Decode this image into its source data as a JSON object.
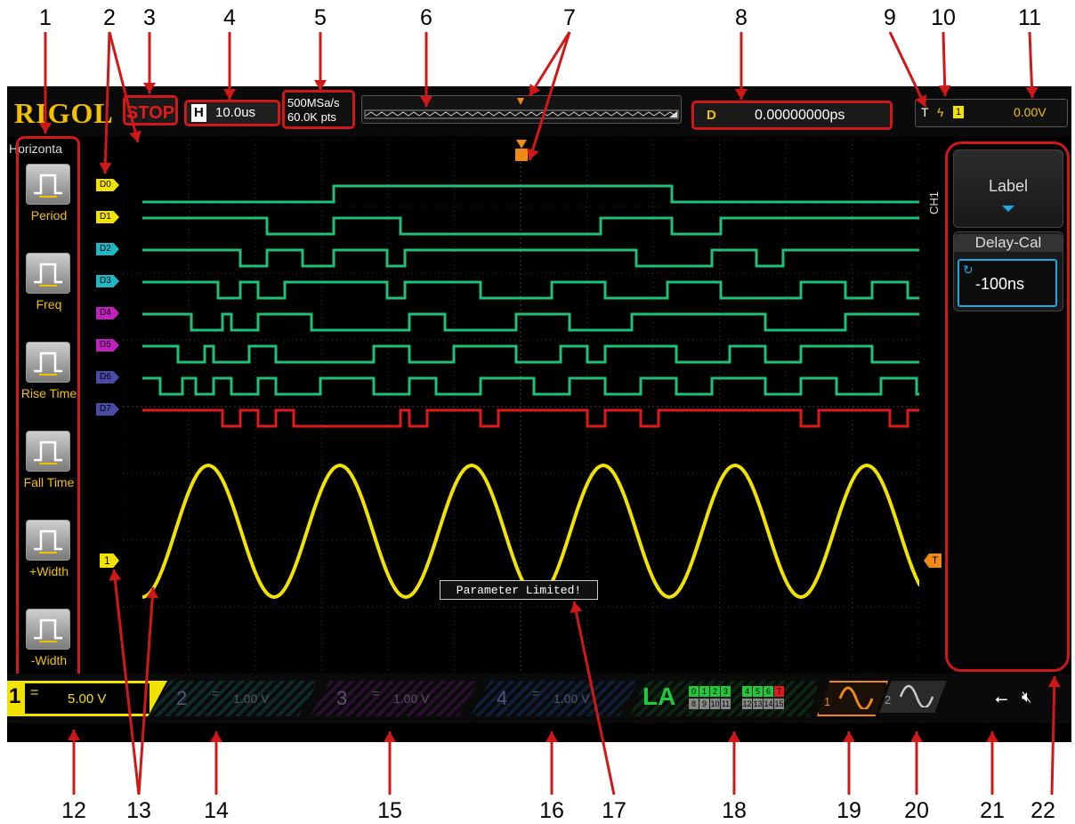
{
  "callouts": [
    "1",
    "2",
    "3",
    "4",
    "5",
    "6",
    "7",
    "8",
    "9",
    "10",
    "11",
    "12",
    "13",
    "14",
    "15",
    "16",
    "17",
    "18",
    "19",
    "20",
    "21",
    "22"
  ],
  "brand": "RIGOL",
  "run_state": "STOP",
  "horizontal": {
    "key": "H",
    "value": "10.0us"
  },
  "sample": {
    "rate": "500MSa/s",
    "depth": "60.0K pts"
  },
  "delay": {
    "key": "D",
    "value": "0.00000000ps"
  },
  "trigger": {
    "key": "T",
    "source": "1",
    "level": "0.00V"
  },
  "left_menu": {
    "title": "Horizonta",
    "items": [
      {
        "label": "Period",
        "icon": "period-icon"
      },
      {
        "label": "Freq",
        "icon": "frequency-icon"
      },
      {
        "label": "Rise Time",
        "icon": "rise-time-icon"
      },
      {
        "label": "Fall Time",
        "icon": "fall-time-icon"
      },
      {
        "label": "+Width",
        "icon": "positive-width-icon"
      },
      {
        "label": "-Width",
        "icon": "negative-width-icon"
      }
    ]
  },
  "digital_channels": [
    "D0",
    "D1",
    "D2",
    "D3",
    "D4",
    "D5",
    "D6",
    "D7"
  ],
  "ch1_marker": "1",
  "trigger_marker_right": "T",
  "tooltip": "Parameter Limited!",
  "right_panel": {
    "tab": "CH1",
    "label_btn": "Label",
    "delay_title": "Delay-Cal",
    "delay_value": "-100ns"
  },
  "channels": [
    {
      "num": "1",
      "coupling": "=",
      "scale": "5.00 V",
      "color": "#f2e200"
    },
    {
      "num": "2",
      "coupling": "=",
      "scale": "1.00 V",
      "color": "#2a8a8a"
    },
    {
      "num": "3",
      "coupling": "=",
      "scale": "1.00 V",
      "color": "#7a2a8a"
    },
    {
      "num": "4",
      "coupling": "=",
      "scale": "1.00 V",
      "color": "#2a5aa0"
    }
  ],
  "la": {
    "label": "LA",
    "top_row": [
      "0",
      "1",
      "2",
      "3"
    ],
    "top_row2": [
      "4",
      "5",
      "6",
      "7"
    ],
    "bottom_row": [
      "8",
      "9",
      "10",
      "11"
    ],
    "bottom_row2": [
      "12",
      "13",
      "14",
      "15"
    ]
  },
  "source1": "1",
  "source2": "2",
  "colors": {
    "ch1": "#f2e200",
    "digital_high": "#1fb7c4",
    "digital_low": "#22c93a",
    "d7": "#e01a1a",
    "callout_red": "#d01818",
    "logo": "#f2c200"
  }
}
